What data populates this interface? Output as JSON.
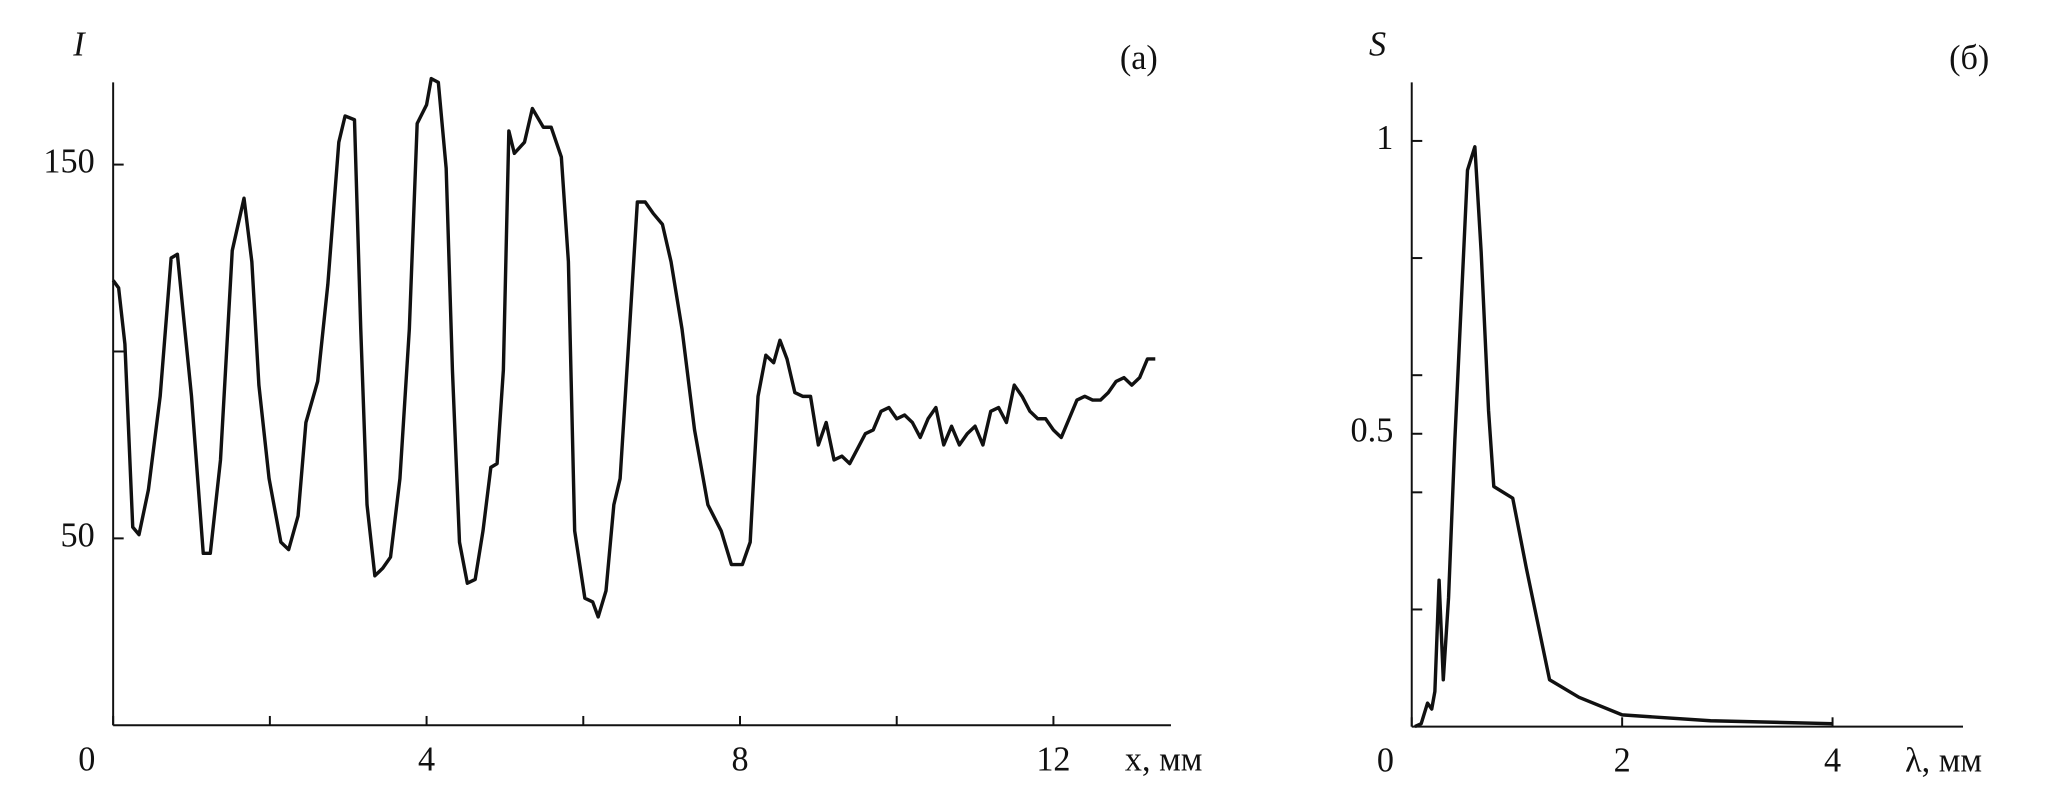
{
  "chart_data": [
    {
      "type": "line",
      "y_label": "I",
      "x_label": "x, мм",
      "annotation": "(а)",
      "xlim": [
        0,
        13.5
      ],
      "ylim": [
        0,
        172
      ],
      "xticks": [
        0,
        4,
        8,
        12
      ],
      "minor_xticks": [
        2,
        6,
        10
      ],
      "yticks": [
        50,
        150
      ],
      "minor_yticks": [
        100
      ],
      "color": "#111111",
      "x": [
        0,
        0.07,
        0.15,
        0.25,
        0.33,
        0.45,
        0.6,
        0.74,
        0.82,
        0.9,
        1.0,
        1.15,
        1.24,
        1.37,
        1.52,
        1.67,
        1.77,
        1.86,
        1.99,
        2.14,
        2.24,
        2.36,
        2.46,
        2.61,
        2.74,
        2.88,
        2.96,
        3.08,
        3.16,
        3.24,
        3.34,
        3.44,
        3.54,
        3.66,
        3.78,
        3.88,
        4.0,
        4.06,
        4.15,
        4.25,
        4.33,
        4.42,
        4.52,
        4.62,
        4.72,
        4.82,
        4.9,
        4.98,
        5.05,
        5.12,
        5.25,
        5.35,
        5.49,
        5.59,
        5.72,
        5.81,
        5.89,
        6.02,
        6.12,
        6.19,
        6.29,
        6.39,
        6.47,
        6.59,
        6.69,
        6.79,
        6.89,
        7.01,
        7.12,
        7.26,
        7.42,
        7.59,
        7.76,
        7.89,
        8.03,
        8.13,
        8.23,
        8.33,
        8.43,
        8.51,
        8.6,
        8.7,
        8.8,
        8.9,
        9.0,
        9.1,
        9.2,
        9.3,
        9.4,
        9.5,
        9.6,
        9.7,
        9.8,
        9.9,
        10.0,
        10.1,
        10.2,
        10.3,
        10.4,
        10.5,
        10.6,
        10.7,
        10.8,
        10.9,
        11.0,
        11.1,
        11.2,
        11.3,
        11.4,
        11.5,
        11.6,
        11.7,
        11.8,
        11.9,
        12.0,
        12.1,
        12.2,
        12.3,
        12.4,
        12.5,
        12.6,
        12.7,
        12.8,
        12.9,
        13.0,
        13.1,
        13.2,
        13.3
      ],
      "values": [
        119,
        117,
        102,
        53,
        51,
        63,
        88,
        125,
        126,
        109,
        88,
        46,
        46,
        71,
        127,
        141,
        124,
        91,
        66,
        49,
        47,
        56,
        81,
        92,
        118,
        156,
        163,
        162,
        106,
        59,
        40,
        42,
        45,
        66,
        106,
        161,
        166,
        173,
        172,
        149,
        95,
        49,
        38,
        39,
        52,
        69,
        70,
        95,
        159,
        153,
        156,
        165,
        160,
        160,
        152,
        124,
        52,
        34,
        33,
        29,
        36,
        59,
        66,
        106,
        140,
        140,
        137,
        134,
        124,
        106,
        79,
        59,
        52,
        43,
        43,
        49,
        88,
        99,
        97,
        103,
        98,
        89,
        88,
        88,
        75,
        81,
        71,
        72,
        70,
        74,
        78,
        79,
        84,
        85,
        82,
        83,
        81,
        77,
        82,
        85,
        75,
        80,
        75,
        78,
        80,
        75,
        84,
        85,
        81,
        91,
        88,
        84,
        82,
        82,
        79,
        77,
        82,
        87,
        88,
        87,
        87,
        89,
        92,
        93,
        91,
        93,
        98,
        98
      ]
    },
    {
      "type": "line",
      "y_label": "S",
      "x_label": "λ, мм",
      "annotation": "(б)",
      "xlim": [
        0,
        5.24
      ],
      "ylim": [
        0,
        1.1
      ],
      "xticks": [
        0,
        2,
        4
      ],
      "minor_xticks": [],
      "yticks": [
        0.5,
        1
      ],
      "minor_yticks": [
        0.2,
        0.4,
        0.6,
        0.8
      ],
      "color": "#111111",
      "x": [
        0.03,
        0.09,
        0.15,
        0.19,
        0.22,
        0.26,
        0.3,
        0.35,
        0.41,
        0.53,
        0.6,
        0.66,
        0.73,
        0.78,
        0.96,
        1.09,
        1.31,
        1.59,
        2.0,
        2.84,
        4.0
      ],
      "values": [
        0,
        0.005,
        0.04,
        0.03,
        0.06,
        0.25,
        0.08,
        0.22,
        0.49,
        0.95,
        0.99,
        0.81,
        0.54,
        0.41,
        0.39,
        0.27,
        0.08,
        0.05,
        0.02,
        0.01,
        0.005
      ]
    }
  ]
}
